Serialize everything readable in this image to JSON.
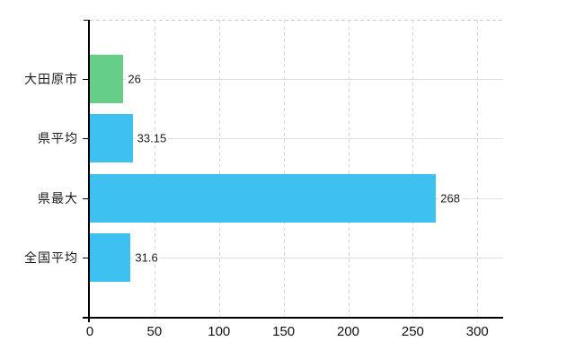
{
  "window": {
    "background_color": "#ffffff"
  },
  "chart_data": {
    "type": "bar",
    "orientation": "horizontal",
    "title": "",
    "xlabel": "",
    "ylabel": "",
    "categories": [
      "大田原市",
      "県平均",
      "県最大",
      "全国平均"
    ],
    "values": [
      26,
      33.15,
      268,
      31.6
    ],
    "value_labels": [
      "26",
      "33.15",
      "268",
      "31.6"
    ],
    "bar_colors": [
      "#65cf87",
      "#3ec1f1",
      "#3ec1f1",
      "#3ec1f1"
    ],
    "xlim": [
      0,
      320
    ],
    "x_tick_values": [
      0,
      50,
      100,
      150,
      200,
      250,
      300
    ],
    "x_tick_labels": [
      "0",
      "50",
      "100",
      "150",
      "200",
      "250",
      "300"
    ],
    "grid": {
      "horizontal_style": "solid",
      "horizontal_color": "#d9e0d8",
      "vertical_style": "dashed",
      "vertical_color": "#d8d8d8",
      "top_border_style": "dashed",
      "top_border_color": "#cccccc"
    },
    "axis_color": "#000000",
    "text_color": "#1c1c1c",
    "legend_position": "none"
  }
}
